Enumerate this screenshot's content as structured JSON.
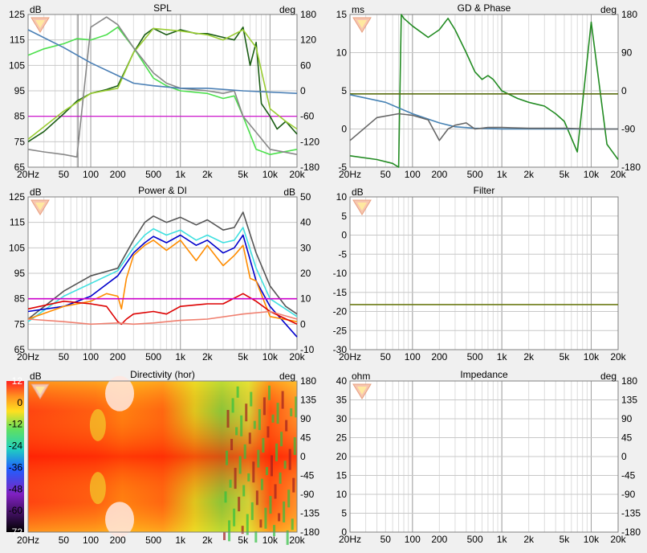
{
  "freq_ticks": [
    "20Hz",
    "50",
    "100",
    "200",
    "500",
    "1k",
    "2k",
    "5k",
    "10k",
    "20k"
  ],
  "logo": {
    "name": "warning-logo-icon"
  },
  "charts": {
    "spl": {
      "title": "SPL",
      "left_unit": "dB",
      "right_unit": "deg",
      "left_ticks": [
        "125",
        "115",
        "105",
        "95",
        "85",
        "75",
        "65"
      ],
      "right_ticks": [
        "180",
        "120",
        "60",
        "0",
        "-60",
        "-120",
        "-180"
      ]
    },
    "gd": {
      "title": "GD & Phase",
      "left_unit": "ms",
      "right_unit": "deg",
      "left_ticks": [
        "15",
        "10",
        "5",
        "0",
        "-5"
      ],
      "right_ticks": [
        "180",
        "90",
        "0",
        "-90",
        "-180"
      ]
    },
    "power": {
      "title": "Power & DI",
      "left_unit": "dB",
      "right_unit": "dB",
      "left_ticks": [
        "125",
        "115",
        "105",
        "95",
        "85",
        "75",
        "65"
      ],
      "right_ticks": [
        "50",
        "40",
        "30",
        "20",
        "10",
        "0",
        "-10"
      ]
    },
    "filter": {
      "title": "Filter",
      "left_unit": "dB",
      "right_unit": "",
      "left_ticks": [
        "10",
        "5",
        "0",
        "-5",
        "-10",
        "-15",
        "-20",
        "-25",
        "-30"
      ],
      "right_ticks": []
    },
    "directivity": {
      "title": "Directivity (hor)",
      "left_unit": "dB",
      "right_unit": "deg",
      "scale_ticks": [
        "12",
        "0",
        "-12",
        "-24",
        "-36",
        "-48",
        "-60",
        "-72"
      ],
      "right_ticks": [
        "180",
        "135",
        "90",
        "45",
        "0",
        "-45",
        "-90",
        "-135",
        "-180"
      ]
    },
    "impedance": {
      "title": "Impedance",
      "left_unit": "ohm",
      "right_unit": "deg",
      "left_ticks": [
        "40",
        "35",
        "30",
        "25",
        "20",
        "15",
        "10",
        "5",
        "0"
      ],
      "right_ticks": [
        "180",
        "135",
        "90",
        "45",
        "0",
        "-45",
        "-90",
        "-135",
        "-180"
      ]
    }
  },
  "chart_data": [
    {
      "type": "line",
      "title": "SPL",
      "xscale": "log",
      "xlim": [
        20,
        20000
      ],
      "ylim": [
        65,
        125
      ],
      "y2lim": [
        -180,
        180
      ],
      "grid": true,
      "reference_level_db": 85,
      "series": [
        {
          "color": "#1a5c14",
          "x": [
            20,
            30,
            50,
            70,
            100,
            150,
            200,
            250,
            300,
            400,
            500,
            700,
            1000,
            1500,
            2000,
            3000,
            4000,
            5000,
            6000,
            7000,
            8000,
            10000,
            12000,
            15000,
            20000
          ],
          "values": [
            75,
            79,
            86,
            91,
            94,
            95.5,
            97,
            104,
            110,
            117,
            119.5,
            117,
            119,
            117.5,
            117.5,
            116,
            115,
            120,
            105,
            114,
            90,
            85,
            80,
            83,
            78
          ]
        },
        {
          "color": "#9acd32",
          "x": [
            20,
            50,
            100,
            200,
            300,
            500,
            1000,
            2000,
            3000,
            5000,
            7000,
            10000,
            15000,
            20000
          ],
          "values": [
            76,
            87,
            94,
            96,
            110,
            119.5,
            118.5,
            117,
            115,
            119,
            112,
            88,
            83,
            80
          ]
        },
        {
          "color": "#4ce04c",
          "x": [
            20,
            30,
            50,
            70,
            100,
            150,
            200,
            300,
            500,
            700,
            1000,
            2000,
            3000,
            4000,
            5000,
            7000,
            10000,
            20000
          ],
          "values": [
            109,
            111.5,
            113.5,
            115.5,
            115,
            117,
            120,
            112,
            100,
            97,
            95,
            94,
            92,
            93,
            85,
            72,
            70,
            72
          ]
        },
        {
          "color": "#888888",
          "x": [
            20,
            30,
            50,
            70,
            100,
            150,
            200,
            300,
            500,
            700,
            1000,
            2000,
            3000,
            4000,
            5000,
            10000,
            20000
          ],
          "values": [
            72,
            71,
            70,
            69,
            120,
            124,
            121,
            112,
            102,
            98,
            96,
            95,
            94,
            95,
            85,
            72,
            70
          ]
        },
        {
          "color": "#4a7fb5",
          "x": [
            20,
            50,
            100,
            200,
            300,
            500,
            1000,
            2000,
            5000,
            20000
          ],
          "values": [
            119,
            112,
            106,
            101,
            98,
            97,
            96,
            96,
            95,
            94
          ]
        }
      ]
    },
    {
      "type": "line",
      "title": "GD & Phase",
      "xscale": "log",
      "xlim": [
        20,
        20000
      ],
      "ylim": [
        -5,
        15
      ],
      "y2lim": [
        -180,
        180
      ],
      "grid": true,
      "series": [
        {
          "color": "#228b22",
          "x": [
            20,
            40,
            60,
            70,
            75,
            80,
            100,
            150,
            200,
            250,
            300,
            400,
            500,
            600,
            700,
            800,
            1000,
            1500,
            2000,
            3000,
            4000,
            5000,
            7000,
            10000,
            15000,
            20000
          ],
          "values": [
            -3.5,
            -4,
            -4.5,
            -5,
            15,
            14.5,
            13.5,
            12,
            13,
            14.5,
            13,
            10,
            7.5,
            6.5,
            7,
            6.5,
            5,
            4,
            3.5,
            3,
            2,
            1,
            -3,
            14,
            -2,
            -4
          ]
        },
        {
          "color": "#5a6e10",
          "x": [
            20,
            20000
          ],
          "values": [
            4.6,
            4.6
          ]
        },
        {
          "color": "#4682b4",
          "x": [
            20,
            50,
            100,
            200,
            300,
            500,
            1000,
            2000,
            5000,
            20000
          ],
          "values": [
            4.5,
            3.5,
            2,
            0.8,
            0.3,
            0.1,
            0,
            0,
            0,
            0
          ]
        },
        {
          "color": "#666666",
          "x": [
            20,
            40,
            70,
            100,
            150,
            200,
            250,
            300,
            400,
            500,
            700,
            1000,
            2000,
            5000,
            10000,
            20000
          ],
          "values": [
            -1.5,
            1.5,
            2,
            1.8,
            1.2,
            -1.5,
            0,
            0.5,
            0.8,
            0,
            0.2,
            0.2,
            0.1,
            0.1,
            0,
            0
          ]
        }
      ]
    },
    {
      "type": "line",
      "title": "Power & DI",
      "xscale": "log",
      "xlim": [
        20,
        20000
      ],
      "ylim": [
        65,
        125
      ],
      "y2lim": [
        -10,
        50
      ],
      "grid": true,
      "reference_level_db": 85,
      "series": [
        {
          "color": "#555555",
          "x": [
            20,
            50,
            100,
            200,
            300,
            400,
            500,
            700,
            1000,
            1500,
            2000,
            3000,
            4000,
            5000,
            7000,
            10000,
            15000,
            20000
          ],
          "values": [
            77,
            88,
            94,
            97,
            108,
            115,
            117.5,
            115,
            117,
            114,
            116,
            112,
            113,
            119,
            103,
            90,
            82,
            79
          ]
        },
        {
          "color": "#40e0e0",
          "x": [
            20,
            50,
            100,
            200,
            300,
            400,
            500,
            700,
            1000,
            1500,
            2000,
            3000,
            4000,
            5000,
            7000,
            10000,
            20000
          ],
          "values": [
            76,
            86,
            91,
            96,
            105,
            110,
            112.5,
            110,
            112,
            108,
            110,
            107,
            108,
            113,
            97,
            85,
            78
          ]
        },
        {
          "color": "#0000cc",
          "x": [
            20,
            50,
            100,
            200,
            300,
            400,
            500,
            700,
            1000,
            1500,
            2000,
            3000,
            4000,
            5000,
            7000,
            10000,
            20000
          ],
          "values": [
            80,
            82,
            86,
            94,
            103,
            107,
            109.5,
            107,
            110,
            106,
            108,
            103,
            105,
            110,
            92,
            82,
            70
          ]
        },
        {
          "color": "#ff8c00",
          "x": [
            20,
            50,
            100,
            150,
            200,
            220,
            250,
            300,
            400,
            500,
            700,
            1000,
            1500,
            2000,
            3000,
            4000,
            5000,
            6000,
            7000,
            10000,
            20000
          ],
          "values": [
            77,
            82,
            84,
            87,
            86,
            81,
            93,
            102,
            106,
            108,
            104,
            108,
            100,
            106,
            98,
            102,
            106,
            93,
            92,
            78,
            76
          ]
        },
        {
          "color": "#dd0000",
          "x": [
            20,
            50,
            100,
            150,
            200,
            220,
            250,
            300,
            500,
            700,
            1000,
            2000,
            3000,
            5000,
            7000,
            10000,
            20000
          ],
          "values": [
            6,
            9,
            8,
            7,
            1,
            0,
            2,
            4,
            5,
            4,
            7,
            8,
            8,
            12,
            9,
            5,
            0
          ]
        },
        {
          "color": "#f08070",
          "x": [
            20,
            50,
            100,
            200,
            300,
            500,
            1000,
            2000,
            5000,
            10000,
            20000
          ],
          "values": [
            2,
            1,
            0,
            0.5,
            0,
            0.5,
            1.5,
            2,
            4,
            5,
            2
          ]
        },
        {
          "color": "#cc00cc",
          "x": [
            20,
            20000
          ],
          "values": [
            85,
            85
          ]
        }
      ]
    },
    {
      "type": "line",
      "title": "Filter",
      "xscale": "log",
      "xlim": [
        20,
        20000
      ],
      "ylim": [
        -30,
        10
      ],
      "grid": true,
      "series": [
        {
          "color": "#6b7a14",
          "x": [
            20,
            20000
          ],
          "values": [
            -18.2,
            -18.2
          ]
        }
      ]
    },
    {
      "type": "heatmap",
      "title": "Directivity (hor)",
      "xscale": "log",
      "xlim": [
        20,
        20000
      ],
      "ylim": [
        -180,
        180
      ],
      "color_scale_db": [
        12,
        -72
      ],
      "grid": false
    },
    {
      "type": "line",
      "title": "Impedance",
      "xscale": "log",
      "xlim": [
        20,
        20000
      ],
      "ylim": [
        0,
        40
      ],
      "y2lim": [
        -180,
        180
      ],
      "grid": true,
      "series": []
    }
  ]
}
